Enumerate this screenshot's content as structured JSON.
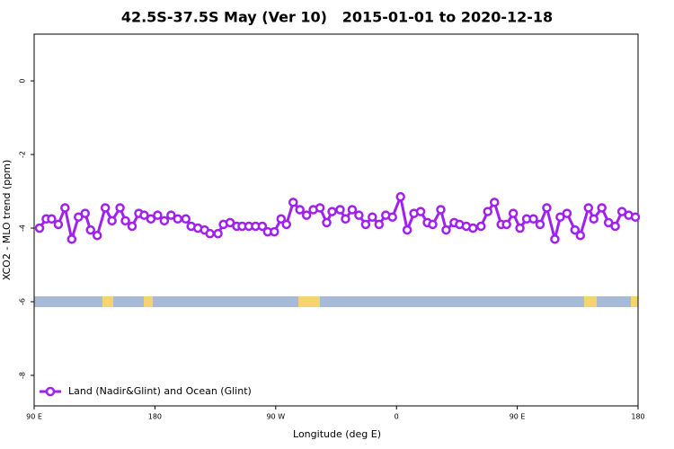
{
  "chart_data": {
    "type": "line",
    "title": "42.5S-37.5S May (Ver 10)   2015-01-01 to 2020-12-18",
    "x_label": "Longitude (deg E)",
    "y_label": "XCO2 - MLO trend (ppm)",
    "xlim": [
      90,
      540
    ],
    "ylim": [
      -8.83,
      1.27
    ],
    "xticks": [
      {
        "value": 90,
        "label": "90 E"
      },
      180,
      {
        "value": 270,
        "label": "90 W"
      },
      {
        "value": 360,
        "label": "0"
      },
      {
        "value": 450,
        "label": "90 E"
      },
      {
        "value": 540,
        "label": "180"
      }
    ],
    "yticks": [
      0,
      -2,
      -4,
      -6,
      -8
    ],
    "legend": "bottom-left",
    "series": [
      {
        "name": "Land (Nadir&Glint) and Ocean (Glint)",
        "color": "#a020f0",
        "x": [
          94,
          99,
          103,
          108,
          113,
          118,
          123,
          128,
          132,
          137,
          143,
          148,
          154,
          158,
          163,
          168,
          172,
          177,
          182,
          187,
          192,
          197,
          203,
          207,
          212,
          217,
          221,
          227,
          231,
          236,
          241,
          245,
          250,
          255,
          260,
          264,
          269,
          274,
          278,
          283,
          288,
          293,
          298,
          303,
          308,
          312,
          318,
          322,
          327,
          332,
          337,
          342,
          347,
          352,
          357,
          363,
          368,
          373,
          378,
          383,
          387,
          393,
          397,
          403,
          407,
          412,
          417,
          423,
          428,
          433,
          438,
          442,
          447,
          452,
          457,
          462,
          467,
          472,
          478,
          482,
          487,
          493,
          497,
          503,
          507,
          513,
          518,
          523,
          528,
          533,
          538
        ],
        "values": [
          -4.0,
          -3.75,
          -3.75,
          -3.9,
          -3.45,
          -4.3,
          -3.7,
          -3.6,
          -4.05,
          -4.2,
          -3.45,
          -3.8,
          -3.45,
          -3.8,
          -3.95,
          -3.6,
          -3.65,
          -3.75,
          -3.65,
          -3.8,
          -3.65,
          -3.75,
          -3.75,
          -3.95,
          -4.0,
          -4.05,
          -4.15,
          -4.15,
          -3.9,
          -3.85,
          -3.95,
          -3.95,
          -3.95,
          -3.95,
          -3.95,
          -4.1,
          -4.1,
          -3.75,
          -3.9,
          -3.3,
          -3.5,
          -3.65,
          -3.5,
          -3.45,
          -3.85,
          -3.55,
          -3.5,
          -3.75,
          -3.5,
          -3.65,
          -3.9,
          -3.7,
          -3.9,
          -3.65,
          -3.7,
          -3.15,
          -4.05,
          -3.6,
          -3.55,
          -3.85,
          -3.9,
          -3.5,
          -4.05,
          -3.85,
          -3.9,
          -3.95,
          -4.0,
          -3.95,
          -3.55,
          -3.3,
          -3.9,
          -3.9,
          -3.6,
          -4.0,
          -3.75,
          -3.75,
          -3.9,
          -3.45,
          -4.3,
          -3.7,
          -3.6,
          -4.05,
          -4.2,
          -3.45,
          -3.75,
          -3.45,
          -3.85,
          -3.95,
          -3.55,
          -3.65,
          -3.7
        ]
      }
    ]
  }
}
